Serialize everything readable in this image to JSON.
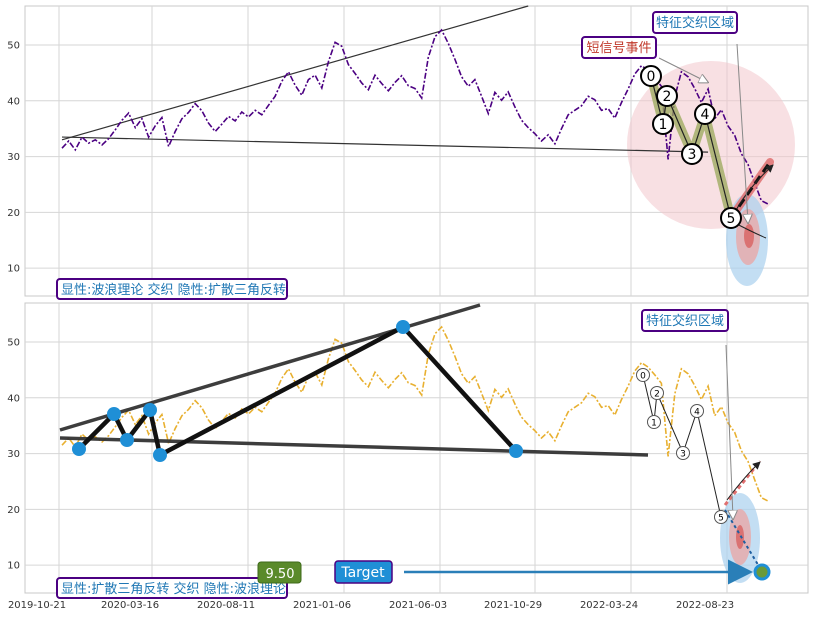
{
  "chart_data": [
    {
      "type": "line",
      "panel": "top",
      "series": [
        {
          "color": "#4b0082",
          "style": "dash-dot",
          "values": [
            31.5,
            32.8,
            31.2,
            33.5,
            32.4,
            33.0,
            32.1,
            33.2,
            34.8,
            36.5,
            37.8,
            35.2,
            36.8,
            33.5,
            35.5,
            37.0,
            31.8,
            34.5,
            36.8,
            37.9,
            39.5,
            38.2,
            36.0,
            34.5,
            35.8,
            37.2,
            36.4,
            38.0,
            37.1,
            38.3,
            37.5,
            39.2,
            40.8,
            43.5,
            45.2,
            42.8,
            41.0,
            43.8,
            44.6,
            42.3,
            47.0,
            50.5,
            49.8,
            46.5,
            44.9,
            43.2,
            42.0,
            44.6,
            43.1,
            41.8,
            43.3,
            44.5,
            42.7,
            42.2,
            40.5,
            47.8,
            51.5,
            52.7,
            50.3,
            47.4,
            44.3,
            42.6,
            43.8,
            40.8,
            37.7,
            41.5,
            40.1,
            41.6,
            38.9,
            36.5,
            35.2,
            34.1,
            32.8,
            33.9,
            32.3,
            35.0,
            37.5,
            38.3,
            39.1,
            40.8,
            40.2,
            38.3,
            38.6,
            36.9,
            39.7,
            42.1,
            44.8,
            46.3,
            45.5,
            44.1,
            42.6,
            29.5,
            40.7,
            45.2,
            44.3,
            42.2,
            39.7,
            42.1,
            36.8,
            38.4,
            35.5,
            33.8,
            30.5,
            28.6,
            25.3,
            22.1,
            21.5
          ]
        }
      ],
      "x_tick_labels": [
        "2019-10-21",
        "2020-03-16",
        "2020-08-11",
        "2021-01-06",
        "2021-06-03",
        "2021-10-29",
        "2022-03-24",
        "2022-08-23"
      ],
      "y_ticks": [
        10,
        20,
        30,
        40,
        50
      ],
      "ylim": [
        5,
        57
      ],
      "wave_points": [
        {
          "label": "0",
          "value": 45.0
        },
        {
          "label": "2",
          "value": 41.5
        },
        {
          "label": "1",
          "value": 36.5
        },
        {
          "label": "4",
          "value": 38.0
        },
        {
          "label": "3",
          "value": 31.0
        },
        {
          "label": "5",
          "value": 19.5
        }
      ],
      "trend_lines": [
        {
          "from": [
            0,
            33.5
          ],
          "to": [
            97,
            30.8
          ]
        },
        {
          "from": [
            0,
            33.0
          ],
          "to": [
            70,
            57.0
          ]
        }
      ],
      "annotations": {
        "zone_label": "特征交织区域",
        "signal_label": "短信号事件",
        "legend_text": "显性:波浪理论 交织 隐性:扩散三角反转"
      }
    },
    {
      "type": "line",
      "panel": "bottom",
      "series": [
        {
          "color": "#e8b030",
          "style": "dash-dot",
          "values_ref": "top"
        }
      ],
      "pattern_points": [
        {
          "x": 3,
          "value": 31.5
        },
        {
          "x": 8,
          "value": 38.0
        },
        {
          "x": 10,
          "value": 33.2
        },
        {
          "x": 13,
          "value": 38.5
        },
        {
          "x": 15,
          "value": 30.6
        },
        {
          "x": 55,
          "value": 53.5
        },
        {
          "x": 73,
          "value": 31.2
        }
      ],
      "wave_points": [
        {
          "label": "0",
          "value": 44.7
        },
        {
          "label": "2",
          "value": 41.8
        },
        {
          "label": "1",
          "value": 37.5
        },
        {
          "label": "4",
          "value": 37.5
        },
        {
          "label": "3",
          "value": 31.5
        },
        {
          "label": "5",
          "value": 19.8
        }
      ],
      "target_value": 9.5,
      "annotations": {
        "zone_label": "特征交织区域",
        "target_label": "Target",
        "target_value_label": "9.50",
        "legend_text": "显性:扩散三角反转 交织 隐性:波浪理论"
      }
    }
  ]
}
